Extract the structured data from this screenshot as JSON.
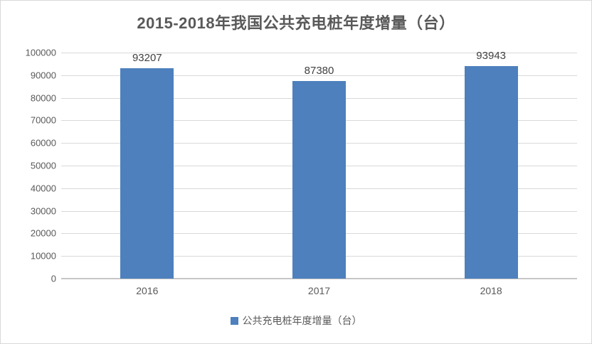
{
  "title": "2015-2018年我国公共充电桩年度增量（台）",
  "legend": {
    "label": "公共充电桩年度增量（台）",
    "swatch_color": "#4d80bd"
  },
  "colors": {
    "bar": "#4d80bd",
    "gridline": "#d9d9d9",
    "axis_line": "#c6c6c6",
    "axis_text": "#595959",
    "value_label_text": "#404040",
    "frame_border": "#d9d9d9"
  },
  "chart_data": {
    "type": "bar",
    "title": "2015-2018年我国公共充电桩年度增量（台）",
    "categories": [
      "2016",
      "2017",
      "2018"
    ],
    "values": [
      93207,
      87380,
      93943
    ],
    "bar_value_labels": [
      "93207",
      "87380",
      "93943"
    ],
    "xlabel": "",
    "ylabel": "",
    "ylim": [
      0,
      100000
    ],
    "ytick_step": 10000,
    "ytick_labels": [
      "0",
      "10000",
      "20000",
      "30000",
      "40000",
      "50000",
      "60000",
      "70000",
      "80000",
      "90000",
      "100000"
    ],
    "grid": true,
    "legend_entries": [
      "公共充电桩年度增量（台）"
    ],
    "legend_position": "bottom"
  }
}
